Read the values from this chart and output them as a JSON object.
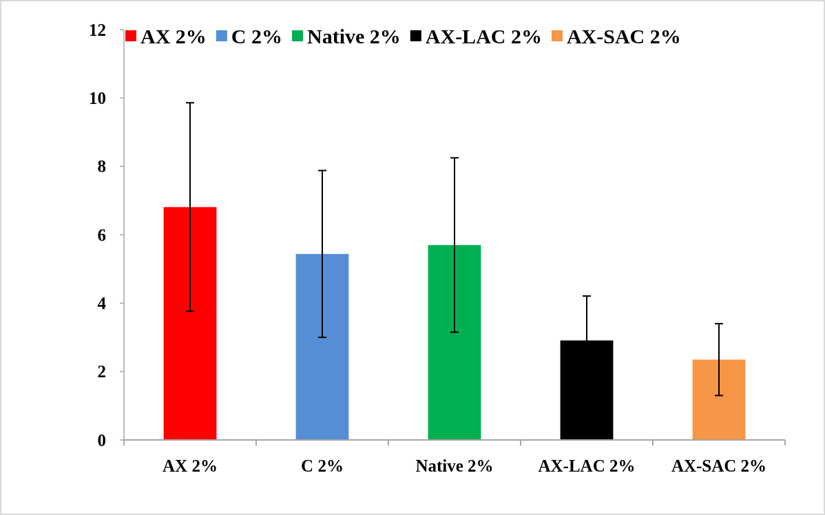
{
  "chart_data": {
    "type": "bar",
    "stacked": true,
    "categories": [
      "AX 2%",
      "C 2%",
      "Native 2%",
      "AX-LAC 2%",
      "AX-SAC 2%"
    ],
    "series": [
      {
        "name": "AX 2%",
        "color": "#ff0000",
        "values": [
          6.81,
          null,
          null,
          null,
          null
        ],
        "errors": [
          3.05,
          null,
          null,
          null,
          null
        ]
      },
      {
        "name": "C 2%",
        "color": "#558ed5",
        "values": [
          null,
          5.44,
          null,
          null,
          null
        ],
        "errors": [
          null,
          2.44,
          null,
          null,
          null
        ]
      },
      {
        "name": "Native 2%",
        "color": "#00b050",
        "values": [
          null,
          null,
          5.7,
          null,
          null
        ],
        "errors": [
          null,
          null,
          2.55,
          null,
          null
        ]
      },
      {
        "name": "AX-LAC 2%",
        "color": "#000000",
        "values": [
          null,
          null,
          null,
          2.91,
          null
        ],
        "errors": [
          null,
          null,
          null,
          1.3,
          null
        ]
      },
      {
        "name": "AX-SAC 2%",
        "color": "#f79646",
        "values": [
          null,
          null,
          null,
          null,
          2.35
        ],
        "errors": [
          null,
          null,
          null,
          null,
          1.05
        ]
      }
    ],
    "ylim": [
      0,
      12
    ],
    "yticks": [
      0,
      2,
      4,
      6,
      8,
      10,
      12
    ],
    "grid": false,
    "legend": "top"
  }
}
